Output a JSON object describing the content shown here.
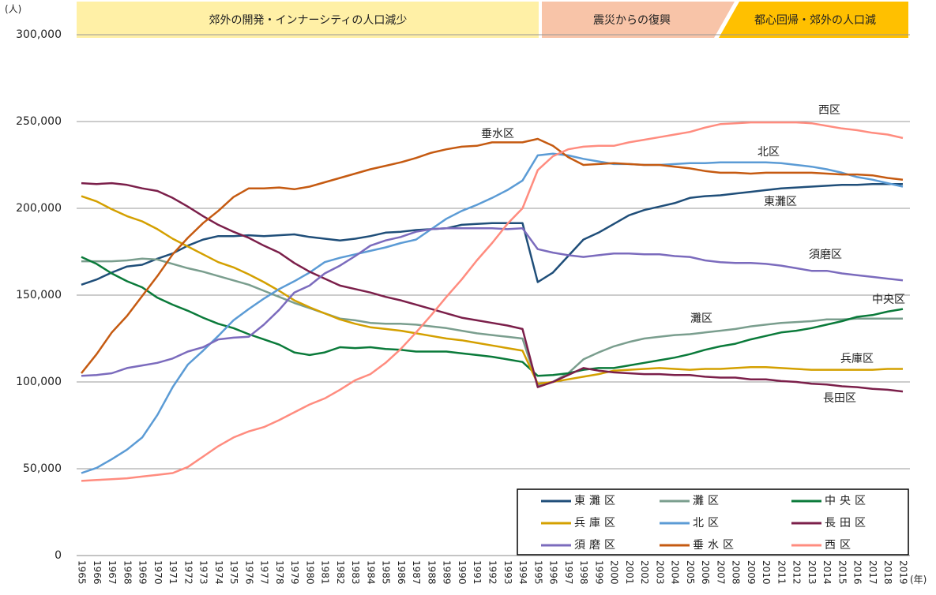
{
  "chart_data": {
    "type": "line",
    "y_label": "(人)",
    "x_label": "(年)",
    "periods": [
      "郊外の開発・インナーシティの人口減少",
      "震災からの復興",
      "都心回帰・郊外の人口減"
    ],
    "categories": [
      "1965",
      "1966",
      "1967",
      "1968",
      "1969",
      "1970",
      "1971",
      "1972",
      "1973",
      "1974",
      "1975",
      "1976",
      "1977",
      "1978",
      "1979",
      "1980",
      "1981",
      "1982",
      "1983",
      "1984",
      "1985",
      "1986",
      "1987",
      "1988",
      "1989",
      "1990",
      "1991",
      "1992",
      "1993",
      "1994",
      "1995",
      "1996",
      "1997",
      "1998",
      "1999",
      "2000",
      "2001",
      "2002",
      "2003",
      "2004",
      "2005",
      "2006",
      "2007",
      "2008",
      "2009",
      "2010",
      "2011",
      "2012",
      "2013",
      "2014",
      "2015",
      "2016",
      "2017",
      "2018",
      "2019"
    ],
    "ylim": [
      0,
      300000
    ],
    "yticks": [
      0,
      {
        "value": 50000,
        "label": "50,000"
      },
      {
        "value": 100000,
        "label": "100,000"
      },
      {
        "value": 150000,
        "label": "150,000"
      },
      {
        "value": 200000,
        "label": "200,000"
      },
      {
        "value": 250000,
        "label": "250,000"
      },
      {
        "value": 300000,
        "label": "300,000"
      }
    ],
    "grid": true,
    "series": [
      {
        "name": "東灘区",
        "color": "#1f4e79",
        "values": [
          156000,
          159000,
          163000,
          166500,
          167500,
          171000,
          174000,
          178500,
          182000,
          184000,
          184000,
          184500,
          184000,
          184500,
          185000,
          183500,
          182500,
          181500,
          182500,
          184000,
          186000,
          186500,
          187500,
          188000,
          188500,
          190500,
          191000,
          191500,
          191500,
          191500,
          157500,
          163000,
          172500,
          182000,
          186000,
          191000,
          196000,
          199000,
          201000,
          203000,
          206000,
          207000,
          207500,
          208500,
          209500,
          210500,
          211500,
          212000,
          212500,
          213000,
          213500,
          213500,
          214000,
          214000,
          214000
        ]
      },
      {
        "name": "灘区",
        "color": "#7a9e8e",
        "values": [
          169500,
          169500,
          169500,
          170000,
          171000,
          170500,
          168000,
          165500,
          163500,
          161000,
          158500,
          156000,
          152500,
          149000,
          145500,
          142500,
          139500,
          136500,
          135500,
          134000,
          133500,
          133500,
          133000,
          132000,
          131000,
          129500,
          128000,
          127000,
          126000,
          125000,
          98000,
          100000,
          105000,
          113000,
          117000,
          120500,
          123000,
          125000,
          126000,
          127000,
          127500,
          128500,
          129500,
          130500,
          132000,
          133000,
          134000,
          134500,
          135000,
          136000,
          136000,
          136500,
          136500,
          136500,
          136500
        ]
      },
      {
        "name": "中央区",
        "color": "#0a7a3a",
        "values": [
          172000,
          168000,
          162500,
          158000,
          154500,
          148500,
          144500,
          141000,
          137000,
          133500,
          131000,
          127500,
          124500,
          121500,
          117000,
          115500,
          117000,
          120000,
          119500,
          120000,
          119000,
          118500,
          117500,
          117500,
          117500,
          116500,
          115500,
          114500,
          113000,
          111500,
          103500,
          104000,
          105000,
          107000,
          108000,
          108000,
          109500,
          111000,
          112500,
          114000,
          116000,
          118500,
          120500,
          122000,
          124500,
          126500,
          128500,
          129500,
          131000,
          133000,
          135000,
          137500,
          138500,
          140500,
          142000
        ]
      },
      {
        "name": "兵庫区",
        "color": "#d4a000",
        "values": [
          207000,
          204000,
          199500,
          195500,
          192500,
          188000,
          182500,
          178000,
          173500,
          169000,
          166000,
          162000,
          157500,
          152500,
          147000,
          143000,
          139500,
          136000,
          133500,
          131500,
          130500,
          129500,
          128000,
          126500,
          125000,
          124000,
          122500,
          121000,
          119500,
          118000,
          99000,
          100000,
          101500,
          103000,
          104500,
          106500,
          107000,
          107500,
          108000,
          107500,
          107000,
          107500,
          107500,
          108000,
          108500,
          108500,
          108000,
          107500,
          107000,
          107000,
          107000,
          107000,
          107000,
          107500,
          107500
        ]
      },
      {
        "name": "北区",
        "color": "#5b9bd5",
        "values": [
          47500,
          50500,
          55500,
          61000,
          68000,
          81000,
          97000,
          110000,
          118000,
          126500,
          135500,
          142000,
          148000,
          153500,
          158000,
          163000,
          169000,
          171500,
          173500,
          175500,
          177500,
          180000,
          182000,
          188000,
          194000,
          198500,
          202000,
          206000,
          210500,
          216000,
          230500,
          231500,
          230500,
          228500,
          227000,
          225500,
          225500,
          225000,
          225000,
          225500,
          226000,
          226000,
          226500,
          226500,
          226500,
          226500,
          226000,
          225000,
          224000,
          222500,
          220500,
          218000,
          216500,
          214500,
          212500
        ]
      },
      {
        "name": "長田区",
        "color": "#7b1f4a",
        "values": [
          214500,
          214000,
          214500,
          213500,
          211500,
          210000,
          206000,
          201000,
          195500,
          190500,
          186500,
          183000,
          178500,
          174500,
          168500,
          163500,
          159500,
          155500,
          153500,
          151500,
          149000,
          147000,
          144500,
          142000,
          139500,
          137000,
          135500,
          134000,
          132500,
          130500,
          97000,
          100000,
          104000,
          108000,
          106500,
          105500,
          105000,
          104500,
          104500,
          104000,
          104000,
          103000,
          102500,
          102500,
          101500,
          101500,
          100500,
          100000,
          99000,
          98500,
          97500,
          97000,
          96000,
          95500,
          94500
        ]
      },
      {
        "name": "須磨区",
        "color": "#7b6bbd",
        "values": [
          103500,
          104000,
          105000,
          108000,
          109500,
          111000,
          113500,
          117500,
          120000,
          124500,
          125500,
          126000,
          133000,
          141500,
          151500,
          155500,
          162500,
          167000,
          172500,
          178500,
          181500,
          183500,
          186500,
          188000,
          188500,
          188500,
          188500,
          188500,
          188000,
          188500,
          176500,
          174500,
          173000,
          172000,
          173000,
          174000,
          174000,
          173500,
          173500,
          172500,
          172000,
          170000,
          169000,
          168500,
          168500,
          168000,
          167000,
          165500,
          164000,
          164000,
          162500,
          161500,
          160500,
          159500,
          158500
        ]
      },
      {
        "name": "垂水区",
        "color": "#c55a11",
        "values": [
          105000,
          116000,
          128500,
          138000,
          149500,
          161000,
          173500,
          183000,
          191500,
          198500,
          206500,
          211500,
          211500,
          212000,
          211000,
          212500,
          215000,
          217500,
          220000,
          222500,
          224500,
          226500,
          229000,
          232000,
          234000,
          235500,
          236000,
          238000,
          238000,
          238000,
          240000,
          236000,
          229500,
          225000,
          225500,
          226000,
          225500,
          225000,
          225000,
          224000,
          223000,
          221500,
          220500,
          220500,
          220000,
          220500,
          220500,
          220500,
          220500,
          220000,
          219500,
          219500,
          219000,
          217500,
          216500
        ]
      },
      {
        "name": "西区",
        "color": "#ff8c7f",
        "values": [
          43000,
          43500,
          44000,
          44500,
          45500,
          46500,
          47500,
          51000,
          57000,
          63000,
          68000,
          71500,
          74000,
          78000,
          82500,
          87000,
          90500,
          95500,
          101000,
          104500,
          111000,
          119000,
          128500,
          138500,
          149000,
          159000,
          170000,
          180000,
          191000,
          200000,
          222000,
          230000,
          234000,
          235500,
          236000,
          236000,
          238000,
          239500,
          241000,
          242500,
          244000,
          246500,
          248500,
          249000,
          249500,
          249500,
          249500,
          249500,
          249000,
          247500,
          246000,
          245000,
          243500,
          242500,
          240500
        ]
      }
    ]
  }
}
